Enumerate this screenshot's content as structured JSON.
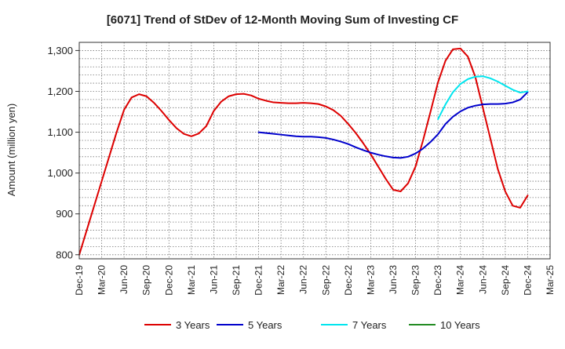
{
  "chart_data": {
    "type": "line",
    "title": "[6071]  Trend of StDev of 12-Month Moving Sum of Investing CF",
    "xlabel": "",
    "ylabel": "Amount (million yen)",
    "ylim": [
      790,
      1320
    ],
    "yticks": [
      800,
      900,
      1000,
      1100,
      1200,
      1300
    ],
    "ytick_labels": [
      "800",
      "900",
      "1,000",
      "1,100",
      "1,200",
      "1,300"
    ],
    "x_range": [
      "Dec-19",
      "Mar-25"
    ],
    "xtick_labels": [
      "Dec-19",
      "Mar-20",
      "Jun-20",
      "Sep-20",
      "Dec-20",
      "Mar-21",
      "Jun-21",
      "Sep-21",
      "Dec-21",
      "Mar-22",
      "Jun-22",
      "Sep-22",
      "Dec-22",
      "Mar-23",
      "Jun-23",
      "Sep-23",
      "Dec-23",
      "Mar-24",
      "Jun-24",
      "Sep-24",
      "Dec-24",
      "Mar-25"
    ],
    "grid": true,
    "legend_position": "bottom",
    "series": [
      {
        "name": "3 Years",
        "color": "#dd0000",
        "x": [
          "2019-12",
          "2020-01",
          "2020-02",
          "2020-03",
          "2020-04",
          "2020-05",
          "2020-06",
          "2020-07",
          "2020-08",
          "2020-09",
          "2020-10",
          "2020-11",
          "2020-12",
          "2021-01",
          "2021-02",
          "2021-03",
          "2021-04",
          "2021-05",
          "2021-06",
          "2021-07",
          "2021-08",
          "2021-09",
          "2021-10",
          "2021-11",
          "2021-12",
          "2022-01",
          "2022-02",
          "2022-03",
          "2022-04",
          "2022-05",
          "2022-06",
          "2022-07",
          "2022-08",
          "2022-09",
          "2022-10",
          "2022-11",
          "2022-12",
          "2023-01",
          "2023-02",
          "2023-03",
          "2023-04",
          "2023-05",
          "2023-06",
          "2023-07",
          "2023-08",
          "2023-09",
          "2023-10",
          "2023-11",
          "2023-12",
          "2024-01",
          "2024-02",
          "2024-03",
          "2024-04",
          "2024-05",
          "2024-06",
          "2024-07",
          "2024-08",
          "2024-09",
          "2024-10",
          "2024-11",
          "2024-12"
        ],
        "values": [
          800,
          860,
          920,
          980,
          1040,
          1100,
          1155,
          1185,
          1193,
          1188,
          1172,
          1152,
          1130,
          1110,
          1096,
          1090,
          1097,
          1115,
          1152,
          1175,
          1188,
          1193,
          1194,
          1190,
          1182,
          1177,
          1173,
          1172,
          1171,
          1171,
          1172,
          1171,
          1169,
          1163,
          1154,
          1140,
          1120,
          1098,
          1073,
          1046,
          1016,
          986,
          959,
          955,
          975,
          1016,
          1080,
          1150,
          1222,
          1275,
          1303,
          1305,
          1285,
          1235,
          1160,
          1085,
          1010,
          955,
          920,
          915,
          945
        ]
      },
      {
        "name": "5 Years",
        "color": "#0000cc",
        "x": [
          "2021-12",
          "2022-01",
          "2022-02",
          "2022-03",
          "2022-04",
          "2022-05",
          "2022-06",
          "2022-07",
          "2022-08",
          "2022-09",
          "2022-10",
          "2022-11",
          "2022-12",
          "2023-01",
          "2023-02",
          "2023-03",
          "2023-04",
          "2023-05",
          "2023-06",
          "2023-07",
          "2023-08",
          "2023-09",
          "2023-10",
          "2023-11",
          "2023-12",
          "2024-01",
          "2024-02",
          "2024-03",
          "2024-04",
          "2024-05",
          "2024-06",
          "2024-07",
          "2024-08",
          "2024-09",
          "2024-10",
          "2024-11",
          "2024-12"
        ],
        "values": [
          1100,
          1098,
          1096,
          1094,
          1092,
          1090,
          1089,
          1089,
          1088,
          1086,
          1082,
          1077,
          1071,
          1063,
          1056,
          1050,
          1045,
          1041,
          1038,
          1037,
          1040,
          1048,
          1060,
          1076,
          1095,
          1120,
          1138,
          1151,
          1160,
          1165,
          1168,
          1169,
          1169,
          1170,
          1173,
          1180,
          1198
        ]
      },
      {
        "name": "7 Years",
        "color": "#00e5ee",
        "x": [
          "2023-12",
          "2024-01",
          "2024-02",
          "2024-03",
          "2024-04",
          "2024-05",
          "2024-06",
          "2024-07",
          "2024-08",
          "2024-09",
          "2024-10",
          "2024-11",
          "2024-12"
        ],
        "values": [
          1132,
          1168,
          1198,
          1218,
          1230,
          1236,
          1237,
          1232,
          1224,
          1214,
          1204,
          1197,
          1200
        ]
      },
      {
        "name": "10 Years",
        "color": "#228b22",
        "x": [],
        "values": []
      }
    ]
  }
}
